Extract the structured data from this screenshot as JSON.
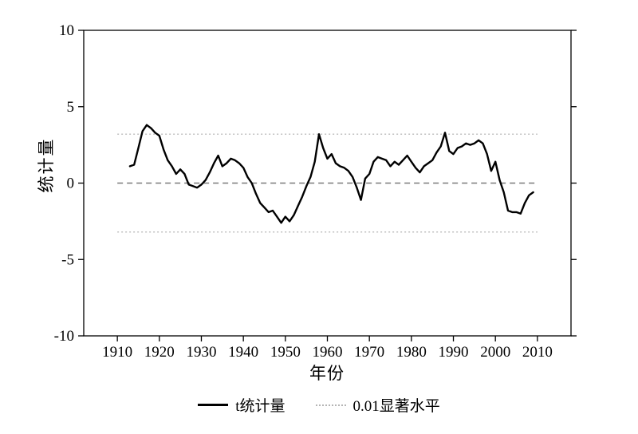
{
  "figure": {
    "xlabel": "年份",
    "ylabel": "统计量",
    "background": "#ffffff"
  },
  "legend": {
    "series_label": "t统计量",
    "sig_label": "0.01显著水平"
  },
  "chart_data": {
    "type": "line",
    "title": "",
    "xlabel": "年份",
    "ylabel": "统计量",
    "xlim": [
      1902,
      2018
    ],
    "ylim": [
      -10,
      10
    ],
    "xticks": [
      1910,
      1920,
      1930,
      1940,
      1950,
      1960,
      1970,
      1980,
      1990,
      2000,
      2010
    ],
    "yticks": [
      -10,
      -5,
      0,
      5,
      10
    ],
    "grid": false,
    "legend_position": "bottom",
    "zero_line": 0,
    "significance_level": 3.2,
    "ref_line_span": [
      1910,
      2010
    ],
    "colors": {
      "line": "#000000",
      "zero": "#7a7a7a",
      "sig": "#bcbcbc"
    },
    "series": [
      {
        "name": "t统计量",
        "start_year": 1913,
        "values": [
          1.1,
          1.2,
          2.3,
          3.4,
          3.8,
          3.6,
          3.3,
          3.1,
          2.2,
          1.5,
          1.1,
          0.6,
          0.9,
          0.6,
          -0.1,
          -0.2,
          -0.3,
          -0.1,
          0.2,
          0.7,
          1.3,
          1.8,
          1.1,
          1.3,
          1.6,
          1.5,
          1.3,
          1.0,
          0.4,
          0.0,
          -0.7,
          -1.3,
          -1.6,
          -1.9,
          -1.8,
          -2.2,
          -2.6,
          -2.2,
          -2.5,
          -2.1,
          -1.5,
          -0.9,
          -0.2,
          0.4,
          1.4,
          3.2,
          2.3,
          1.6,
          1.9,
          1.3,
          1.1,
          1.0,
          0.8,
          0.4,
          -0.3,
          -1.1,
          0.3,
          0.6,
          1.4,
          1.7,
          1.6,
          1.5,
          1.1,
          1.4,
          1.2,
          1.5,
          1.8,
          1.4,
          1.0,
          0.7,
          1.1,
          1.3,
          1.5,
          2.0,
          2.4,
          3.3,
          2.1,
          1.9,
          2.3,
          2.4,
          2.6,
          2.5,
          2.6,
          2.8,
          2.6,
          1.9,
          0.8,
          1.4,
          0.2,
          -0.6,
          -1.8,
          -1.9,
          -1.9,
          -2.0,
          -1.3,
          -0.8,
          -0.6
        ]
      }
    ]
  }
}
